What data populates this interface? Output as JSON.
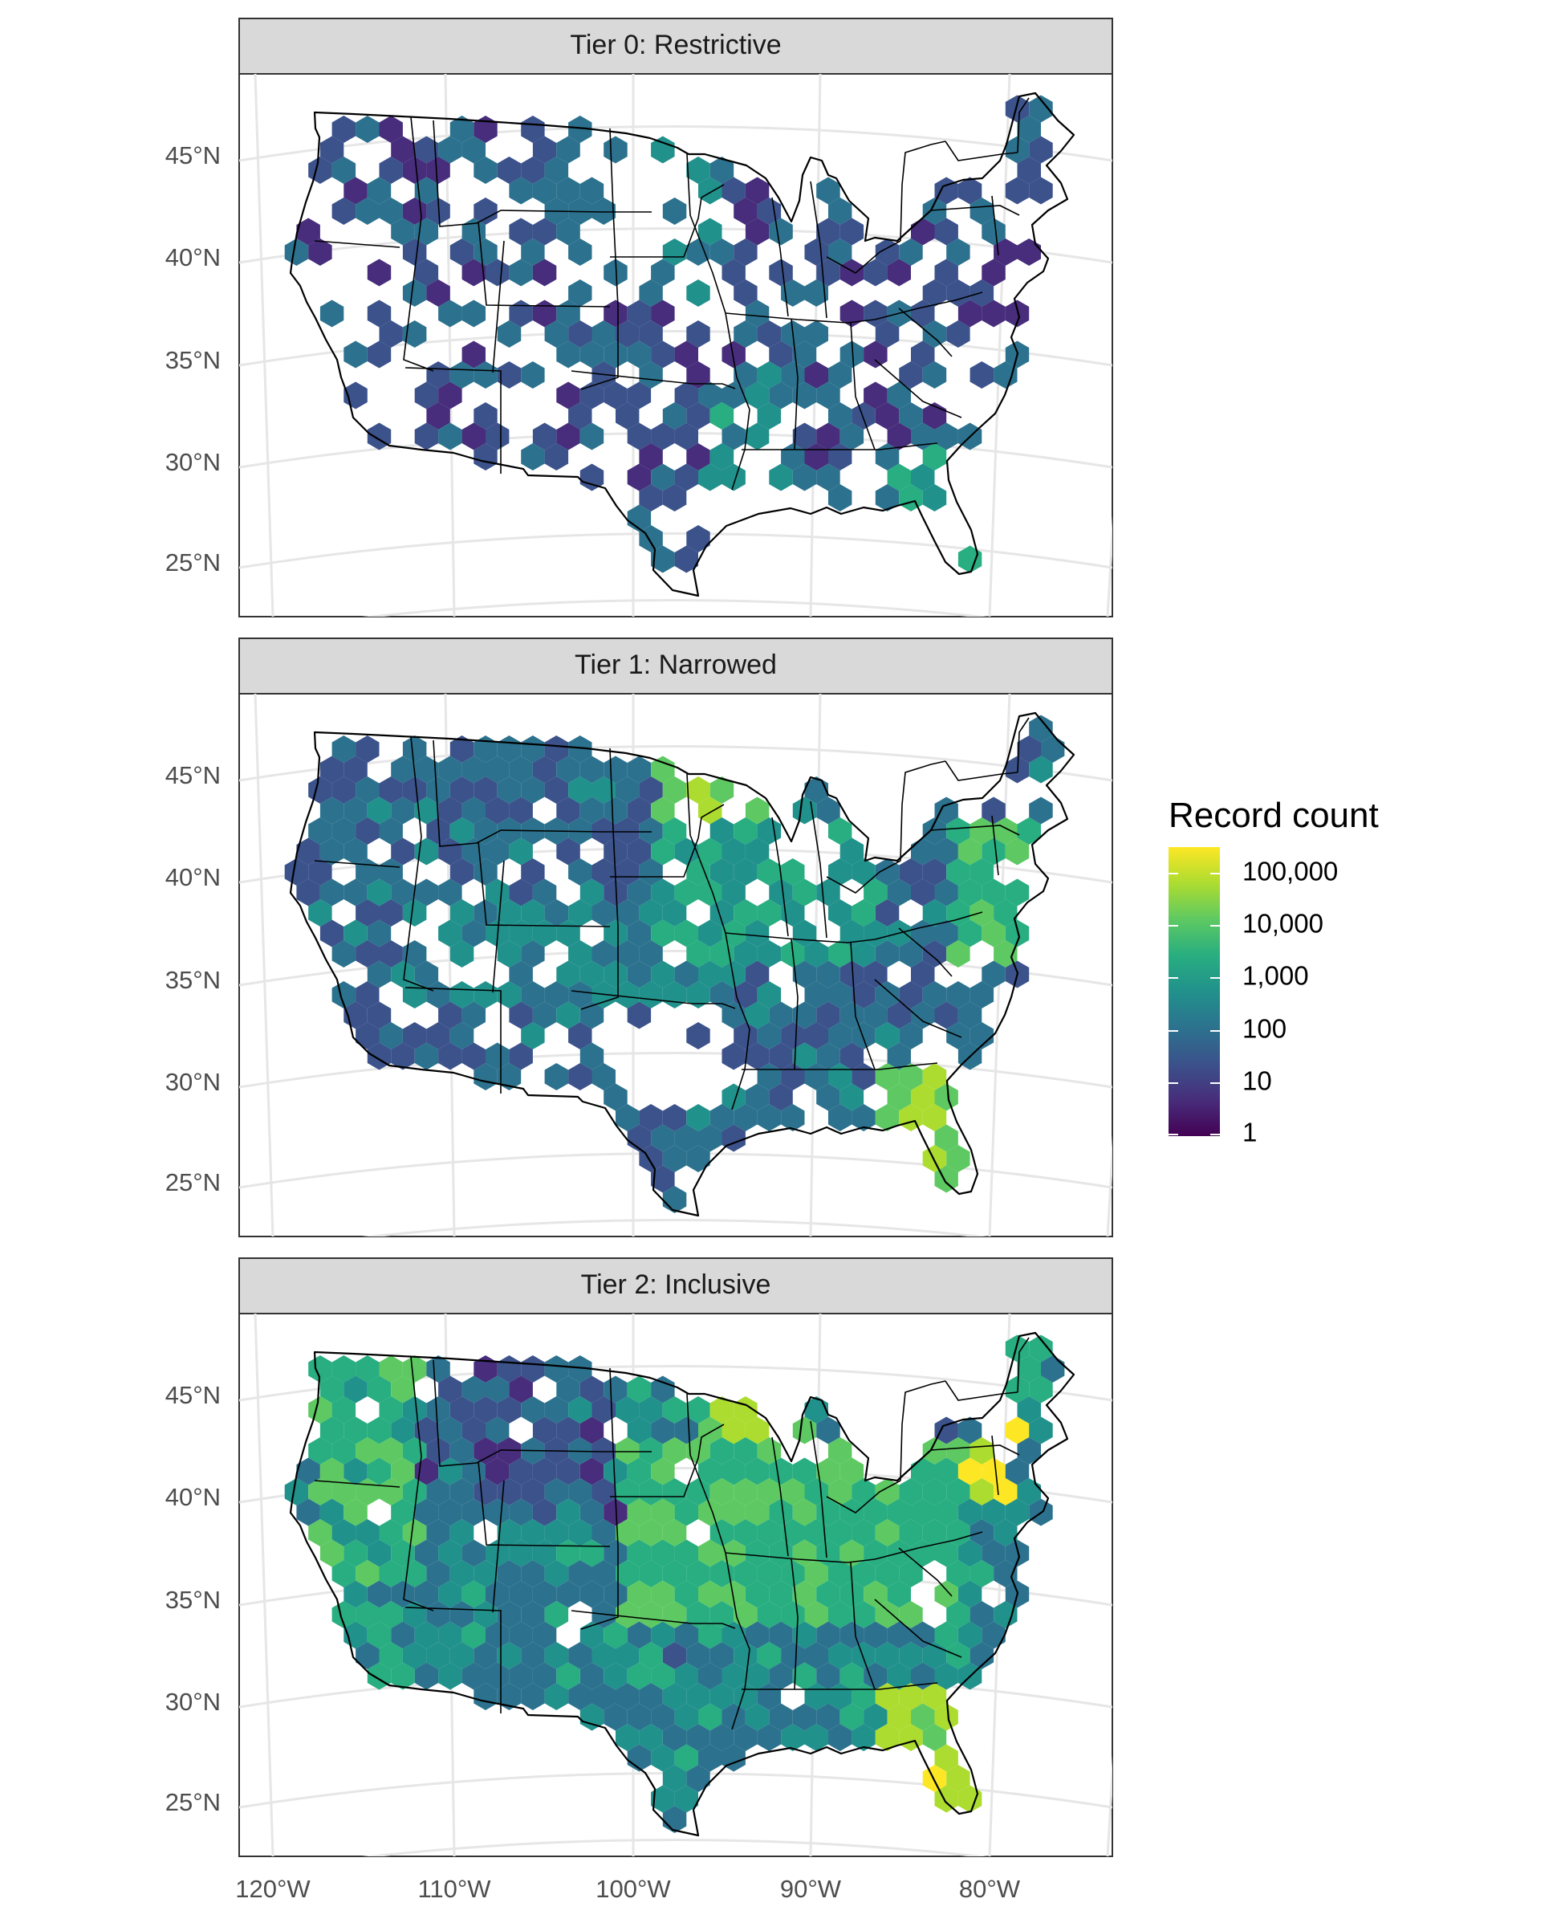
{
  "figure": {
    "panels": [
      {
        "strip_label": "Tier 0: Restrictive"
      },
      {
        "strip_label": "Tier 1: Narrowed"
      },
      {
        "strip_label": "Tier 2: Inclusive"
      }
    ],
    "lat_ticks": [
      "45°N",
      "40°N",
      "35°N",
      "30°N",
      "25°N"
    ],
    "lon_ticks": [
      "120°W",
      "110°W",
      "100°W",
      "90°W",
      "80°W"
    ]
  },
  "legend": {
    "title": "Record count",
    "labels": [
      "100,000",
      "10,000",
      "1,000",
      "100",
      "10",
      "1"
    ],
    "scale": "log10",
    "colormap": "viridis",
    "colors": [
      "#440154",
      "#472d7b",
      "#3b528b",
      "#2c728e",
      "#21918c",
      "#28ae80",
      "#5ec962",
      "#addc30",
      "#fde725"
    ]
  },
  "chart_data": {
    "type": "hexbin map",
    "fill": "Record count (log scale)",
    "panels": [
      {
        "name": "Tier 0: Restrictive",
        "max_count_approx": 3000,
        "coverage": "sparse"
      },
      {
        "name": "Tier 1: Narrowed",
        "max_count_approx": 30000,
        "coverage": "moderate"
      },
      {
        "name": "Tier 2: Inclusive",
        "max_count_approx": 150000,
        "coverage": "near-complete"
      }
    ],
    "legend_breaks": [
      1,
      10,
      100,
      1000,
      10000,
      100000
    ]
  }
}
